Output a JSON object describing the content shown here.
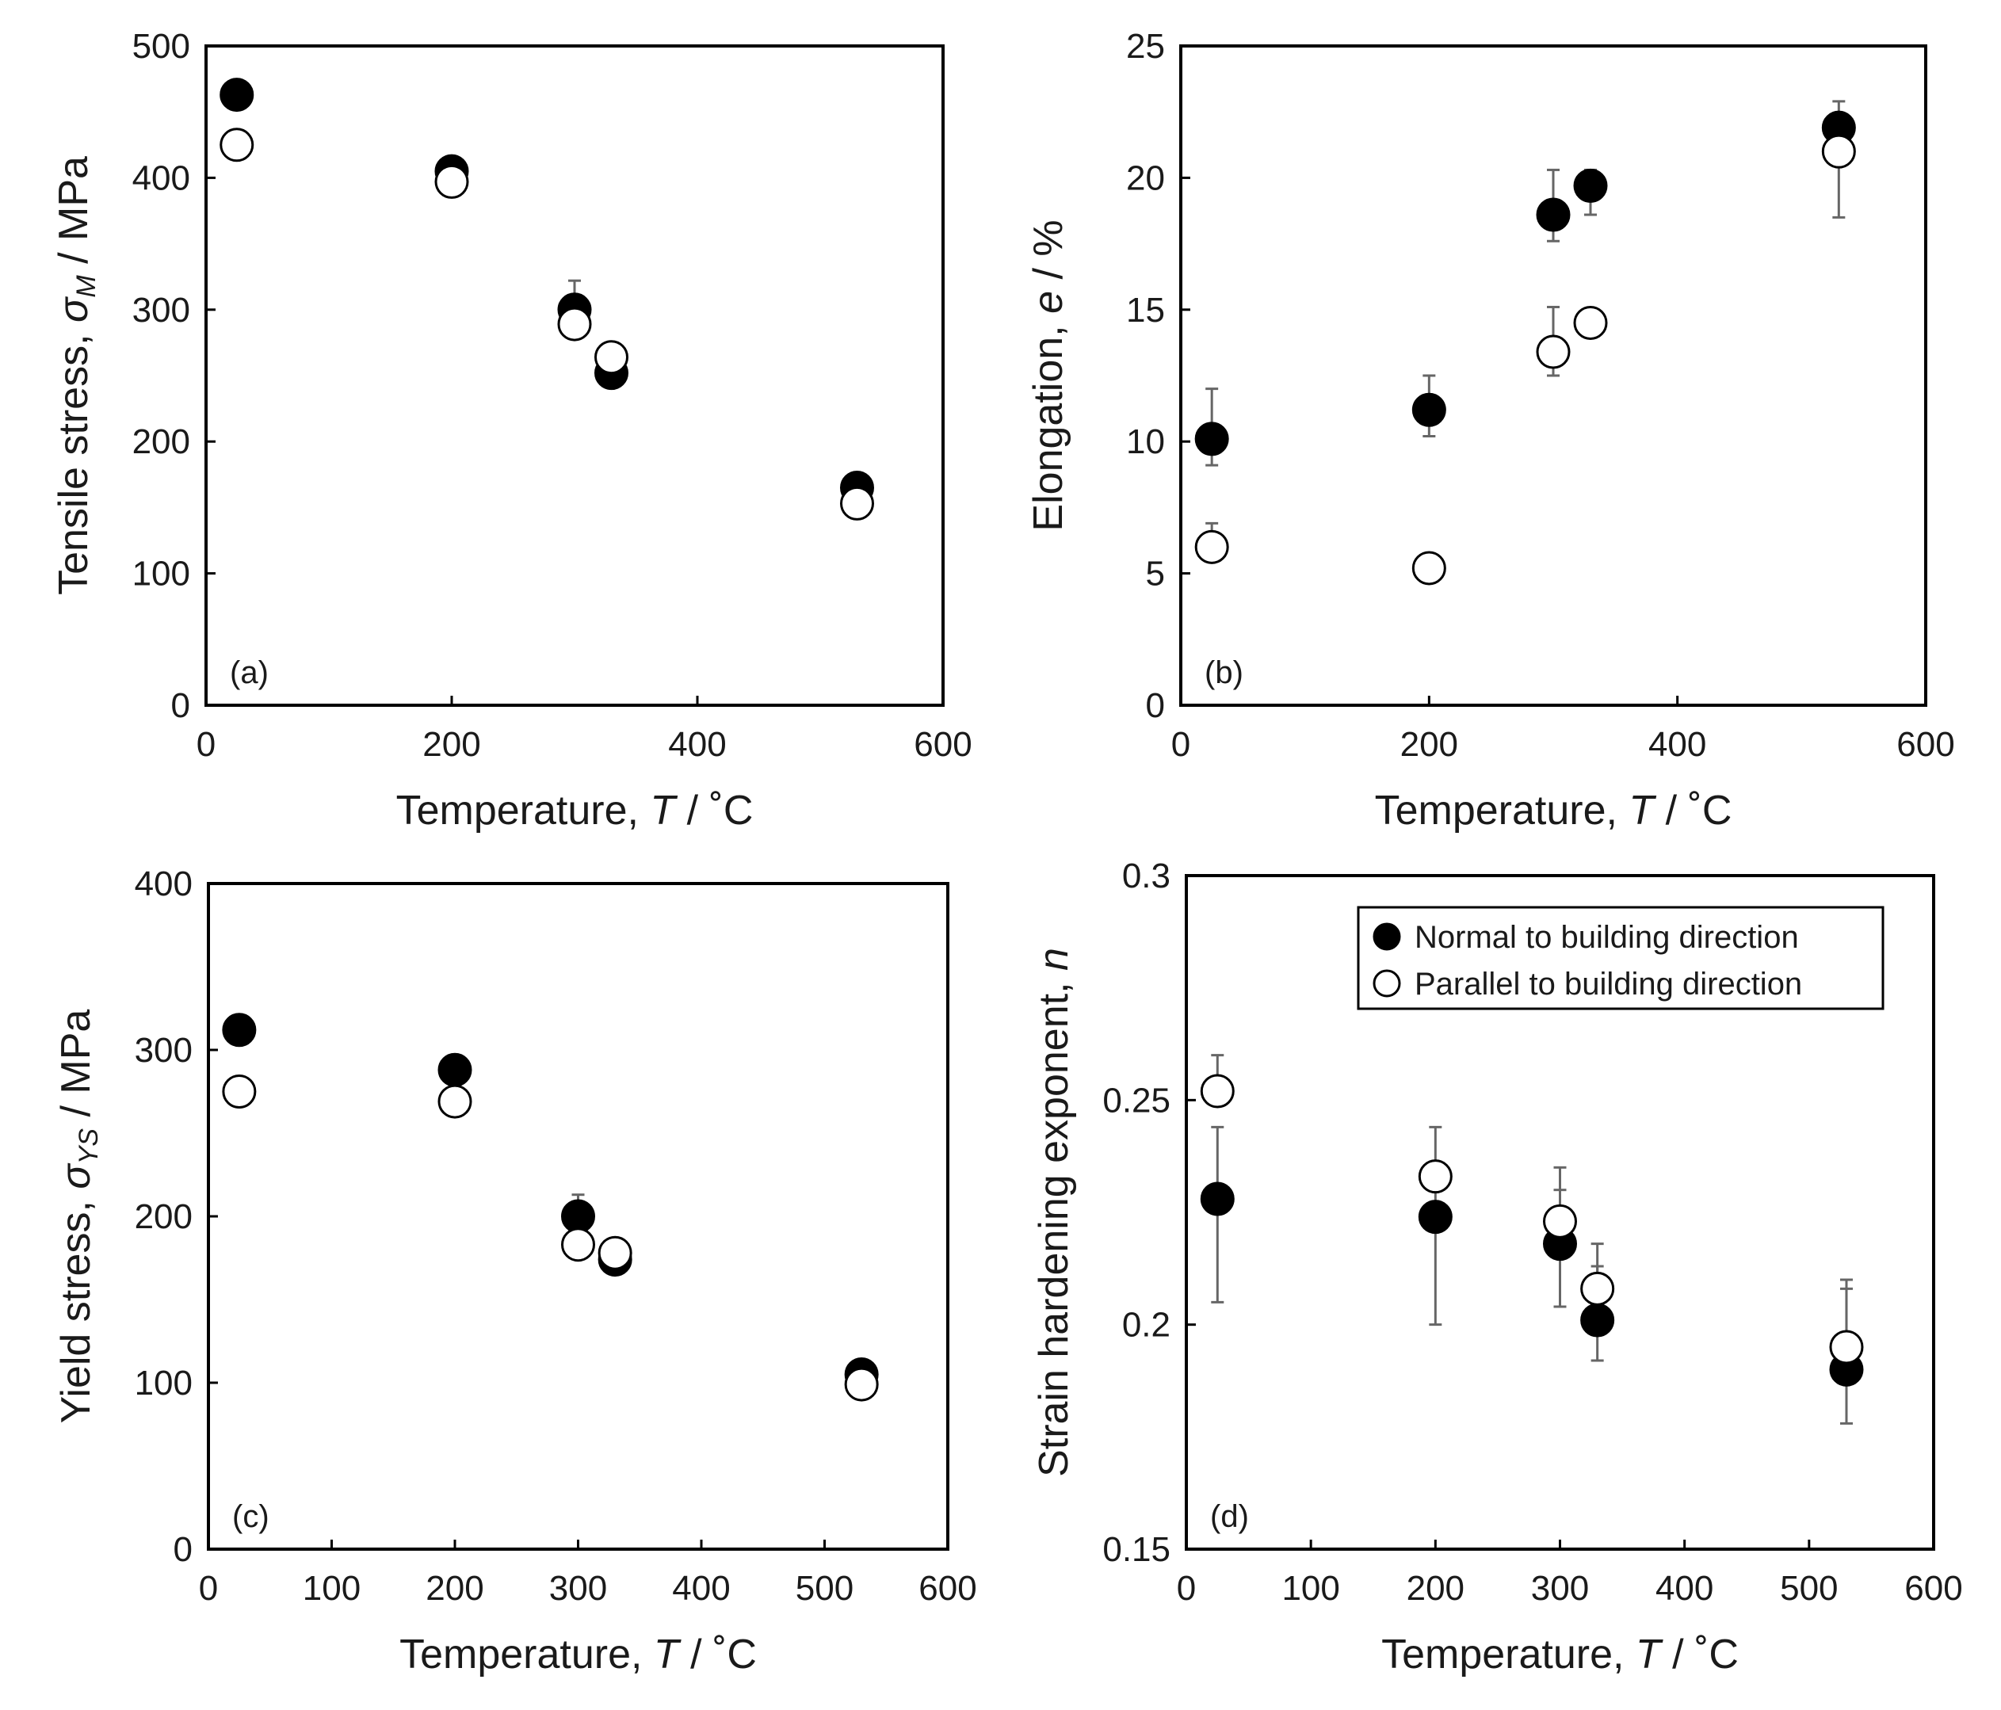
{
  "legend": {
    "normal": "Normal to building direction",
    "parallel": "Parallel to building direction"
  },
  "colors": {
    "normal_fill": "#000000",
    "parallel_fill": "#ffffff",
    "error_bar": "#666666"
  },
  "chart_data": [
    {
      "id": "a",
      "type": "scatter",
      "panel_label": "(a)",
      "xlabel_pre": "Temperature, ",
      "xlabel_var": "T",
      "xlabel_post": " / ˚C",
      "ylabel_pre": "Tensile stress, ",
      "ylabel_var": "σ",
      "ylabel_sub": "M",
      "ylabel_post": " / MPa",
      "xlim": [
        0,
        600
      ],
      "ylim": [
        0,
        500
      ],
      "xticks": [
        0,
        200,
        400,
        600
      ],
      "yticks": [
        0,
        100,
        200,
        300,
        400,
        500
      ],
      "ytick_labels": [
        "0",
        "100",
        "200",
        "300",
        "400",
        "500"
      ],
      "series": [
        {
          "name": "Normal to building direction",
          "marker": "filled",
          "points": [
            {
              "x": 25,
              "y": 463
            },
            {
              "x": 200,
              "y": 405
            },
            {
              "x": 300,
              "y": 300,
              "err_hi": 22
            },
            {
              "x": 330,
              "y": 252
            },
            {
              "x": 530,
              "y": 165
            }
          ]
        },
        {
          "name": "Parallel to building direction",
          "marker": "open",
          "points": [
            {
              "x": 25,
              "y": 425
            },
            {
              "x": 200,
              "y": 397
            },
            {
              "x": 300,
              "y": 289
            },
            {
              "x": 330,
              "y": 264
            },
            {
              "x": 530,
              "y": 153
            }
          ]
        }
      ]
    },
    {
      "id": "b",
      "type": "scatter",
      "panel_label": "(b)",
      "xlabel_pre": "Temperature, ",
      "xlabel_var": "T",
      "xlabel_post": " / ˚C",
      "ylabel_pre": "Elongation, ",
      "ylabel_var": "e",
      "ylabel_sub": "",
      "ylabel_post": " / %",
      "xlim": [
        0,
        600
      ],
      "ylim": [
        0,
        25
      ],
      "xticks": [
        0,
        200,
        400,
        600
      ],
      "yticks": [
        0,
        5,
        10,
        15,
        20,
        25
      ],
      "ytick_labels": [
        "0",
        "5",
        "10",
        "15",
        "20",
        "25"
      ],
      "series": [
        {
          "name": "Normal to building direction",
          "marker": "filled",
          "points": [
            {
              "x": 25,
              "y": 10.1,
              "err_hi": 1.9,
              "err_lo": 1.0
            },
            {
              "x": 200,
              "y": 11.2,
              "err_hi": 1.3,
              "err_lo": 1.0
            },
            {
              "x": 300,
              "y": 18.6,
              "err_hi": 1.7,
              "err_lo": 1.0
            },
            {
              "x": 330,
              "y": 19.7,
              "err_hi": 0.6,
              "err_lo": 1.1
            },
            {
              "x": 530,
              "y": 21.9,
              "err_hi": 1.0,
              "err_lo": 0.5
            }
          ]
        },
        {
          "name": "Parallel to building direction",
          "marker": "open",
          "points": [
            {
              "x": 25,
              "y": 6.0,
              "err_hi": 0.9
            },
            {
              "x": 200,
              "y": 5.2
            },
            {
              "x": 300,
              "y": 13.4,
              "err_hi": 1.7,
              "err_lo": 0.9
            },
            {
              "x": 330,
              "y": 14.5
            },
            {
              "x": 530,
              "y": 21.0,
              "err_lo": 2.5
            }
          ]
        }
      ]
    },
    {
      "id": "c",
      "type": "scatter",
      "panel_label": "(c)",
      "xlabel_pre": "Temperature, ",
      "xlabel_var": "T",
      "xlabel_post": " / ˚C",
      "ylabel_pre": "Yield stress, ",
      "ylabel_var": "σ",
      "ylabel_sub": "YS",
      "ylabel_post": " / MPa",
      "xlim": [
        0,
        600
      ],
      "ylim": [
        0,
        400
      ],
      "xticks": [
        0,
        100,
        200,
        300,
        400,
        500,
        600
      ],
      "yticks": [
        0,
        100,
        200,
        300,
        400
      ],
      "ytick_labels": [
        "0",
        "100",
        "200",
        "300",
        "400"
      ],
      "series": [
        {
          "name": "Normal to building direction",
          "marker": "filled",
          "points": [
            {
              "x": 25,
              "y": 312
            },
            {
              "x": 200,
              "y": 288
            },
            {
              "x": 300,
              "y": 200,
              "err_hi": 13
            },
            {
              "x": 330,
              "y": 174
            },
            {
              "x": 530,
              "y": 105
            }
          ]
        },
        {
          "name": "Parallel to building direction",
          "marker": "open",
          "points": [
            {
              "x": 25,
              "y": 275
            },
            {
              "x": 200,
              "y": 269
            },
            {
              "x": 300,
              "y": 183
            },
            {
              "x": 330,
              "y": 178
            },
            {
              "x": 530,
              "y": 99
            }
          ]
        }
      ]
    },
    {
      "id": "d",
      "type": "scatter",
      "panel_label": "(d)",
      "xlabel_pre": "Temperature, ",
      "xlabel_var": "T",
      "xlabel_post": " / ˚C",
      "ylabel_pre": "Strain hardening exponent, ",
      "ylabel_var": "n",
      "ylabel_sub": "",
      "ylabel_post": "",
      "xlim": [
        0,
        600
      ],
      "ylim": [
        0.15,
        0.3
      ],
      "xticks": [
        0,
        100,
        200,
        300,
        400,
        500,
        600
      ],
      "yticks": [
        0.15,
        0.2,
        0.25,
        0.3
      ],
      "ytick_labels": [
        "0.15",
        "0.2",
        "0.25",
        "0.3"
      ],
      "series": [
        {
          "name": "Normal to building direction",
          "marker": "filled",
          "points": [
            {
              "x": 25,
              "y": 0.228,
              "err_hi": 0.016,
              "err_lo": 0.023
            },
            {
              "x": 200,
              "y": 0.224,
              "err_hi": 0.01,
              "err_lo": 0.024
            },
            {
              "x": 300,
              "y": 0.218,
              "err_hi": 0.012,
              "err_lo": 0.014
            },
            {
              "x": 330,
              "y": 0.201,
              "err_hi": 0.012,
              "err_lo": 0.009
            },
            {
              "x": 530,
              "y": 0.19,
              "err_hi": 0.018,
              "err_lo": 0.012
            }
          ]
        },
        {
          "name": "Parallel to building direction",
          "marker": "open",
          "points": [
            {
              "x": 25,
              "y": 0.252,
              "err_hi": 0.008
            },
            {
              "x": 200,
              "y": 0.233,
              "err_hi": 0.011
            },
            {
              "x": 300,
              "y": 0.223,
              "err_hi": 0.012
            },
            {
              "x": 330,
              "y": 0.208,
              "err_hi": 0.01
            },
            {
              "x": 530,
              "y": 0.195,
              "err_hi": 0.015
            }
          ]
        }
      ]
    }
  ]
}
